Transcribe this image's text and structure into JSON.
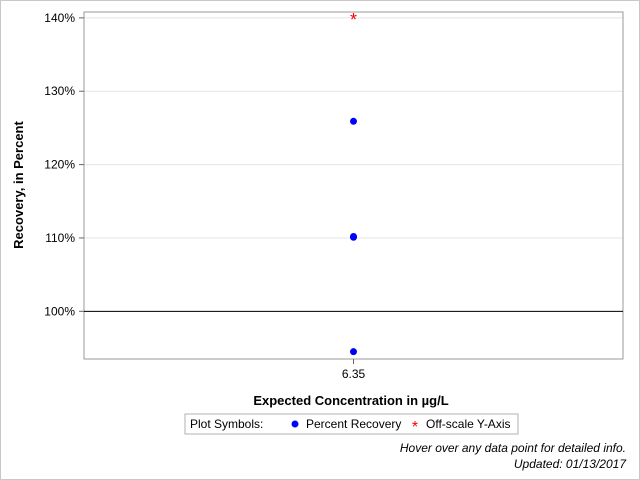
{
  "chart_data": {
    "type": "scatter",
    "xlabel": "Expected Concentration in µg/L",
    "ylabel": "Recovery, in Percent",
    "categories": [
      "6.35"
    ],
    "ylim": [
      93.5,
      140.8
    ],
    "yticks": [
      100,
      110,
      120,
      130,
      140
    ],
    "ytick_labels": [
      "100%",
      "110%",
      "120%",
      "130%",
      "140%"
    ],
    "reference_line_y": 100,
    "grid": true,
    "series": [
      {
        "name": "Percent Recovery",
        "marker": "filled-circle",
        "color": "#0000ff",
        "points": [
          {
            "x": "6.35",
            "y": 125.9
          },
          {
            "x": "6.35",
            "y": 110.2
          },
          {
            "x": "6.35",
            "y": 110.1
          },
          {
            "x": "6.35",
            "y": 94.5
          }
        ]
      },
      {
        "name": "Off-scale Y-Axis",
        "marker": "asterisk",
        "color": "#ff0000",
        "points": [
          {
            "x": "6.35",
            "y": 140
          }
        ]
      }
    ],
    "legend": {
      "title": "Plot Symbols:",
      "placement": "bottom-center",
      "items": [
        "Percent Recovery",
        "Off-scale Y-Axis"
      ]
    }
  },
  "footer": {
    "hover_note": "Hover over any data point for detailed info.",
    "updated": "Updated: 01/13/2017"
  }
}
